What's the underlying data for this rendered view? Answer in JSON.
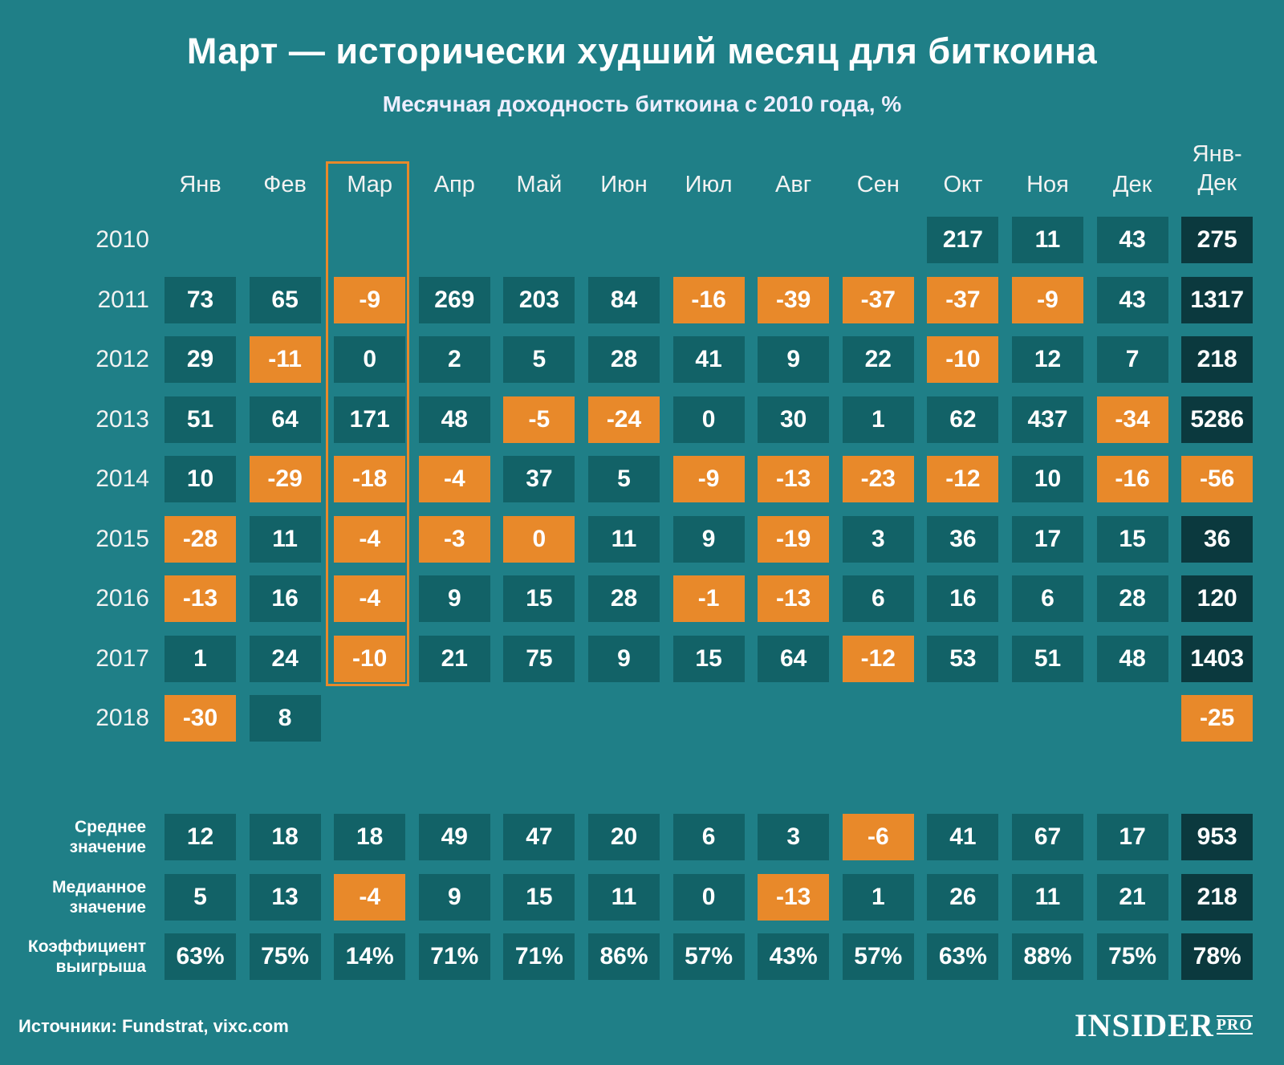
{
  "chart_data": {
    "type": "table",
    "title": "Март — исторически худший месяц для биткоина",
    "subtitle": "Месячная доходность биткоина с 2010 года, %",
    "columns": [
      "Янв",
      "Фев",
      "Мар",
      "Апр",
      "Май",
      "Июн",
      "Июл",
      "Авг",
      "Сен",
      "Окт",
      "Ноя",
      "Дек",
      "Янв-\nДек"
    ],
    "highlight_column": "Мар",
    "colors": {
      "background": "#1f7f87",
      "cell": "#126267",
      "total_cell": "#0b393e",
      "orange": "#e8892a",
      "highlight_border": "#e8892a"
    },
    "rows": [
      {
        "year": "2010",
        "values": [
          null,
          null,
          null,
          null,
          null,
          null,
          null,
          null,
          null,
          "217",
          "11",
          "43",
          "275"
        ]
      },
      {
        "year": "2011",
        "values": [
          "73",
          "65",
          "-9",
          "269",
          "203",
          "84",
          "-16",
          "-39",
          "-37",
          "-37",
          "-9",
          "43",
          "1317"
        ]
      },
      {
        "year": "2012",
        "values": [
          "29",
          "-11",
          "0",
          "2",
          "5",
          "28",
          "41",
          "9",
          "22",
          "-10",
          "12",
          "7",
          "218"
        ]
      },
      {
        "year": "2013",
        "values": [
          "51",
          "64",
          "171",
          "48",
          "-5",
          "-24",
          "0",
          "30",
          "1",
          "62",
          "437",
          "-34",
          "5286"
        ]
      },
      {
        "year": "2014",
        "values": [
          "10",
          "-29",
          "-18",
          "-4",
          "37",
          "5",
          "-9",
          "-13",
          "-23",
          "-12",
          "10",
          "-16",
          "-56"
        ]
      },
      {
        "year": "2015",
        "values": [
          "-28",
          "11",
          "-4",
          "-3",
          "0",
          "11",
          "9",
          "-19",
          "3",
          "36",
          "17",
          "15",
          "36"
        ]
      },
      {
        "year": "2016",
        "values": [
          "-13",
          "16",
          "-4",
          "9",
          "15",
          "28",
          "-1",
          "-13",
          "6",
          "16",
          "6",
          "28",
          "120"
        ]
      },
      {
        "year": "2017",
        "values": [
          "1",
          "24",
          "-10",
          "21",
          "75",
          "9",
          "15",
          "64",
          "-12",
          "53",
          "51",
          "48",
          "1403"
        ]
      },
      {
        "year": "2018",
        "values": [
          "-30",
          "8",
          null,
          null,
          null,
          null,
          null,
          null,
          null,
          null,
          null,
          null,
          "-25"
        ]
      }
    ],
    "orange_zero_cells": [
      {
        "year": "2015",
        "column": "Май"
      }
    ],
    "summary": [
      {
        "label": "Среднее\nзначение",
        "values": [
          "12",
          "18",
          "18",
          "49",
          "47",
          "20",
          "6",
          "3",
          "-6",
          "41",
          "67",
          "17",
          "953"
        ]
      },
      {
        "label": "Медианное\nзначение",
        "values": [
          "5",
          "13",
          "-4",
          "9",
          "15",
          "11",
          "0",
          "-13",
          "1",
          "26",
          "11",
          "21",
          "218"
        ]
      },
      {
        "label": "Коэффициент\nвыигрыша",
        "values": [
          "63%",
          "75%",
          "14%",
          "71%",
          "71%",
          "86%",
          "57%",
          "43%",
          "57%",
          "63%",
          "88%",
          "75%",
          "78%"
        ]
      }
    ]
  },
  "footer": {
    "source": "Источники: Fundstrat, vixc.com",
    "logo": "INSIDER",
    "logo_suffix": "PRO"
  }
}
